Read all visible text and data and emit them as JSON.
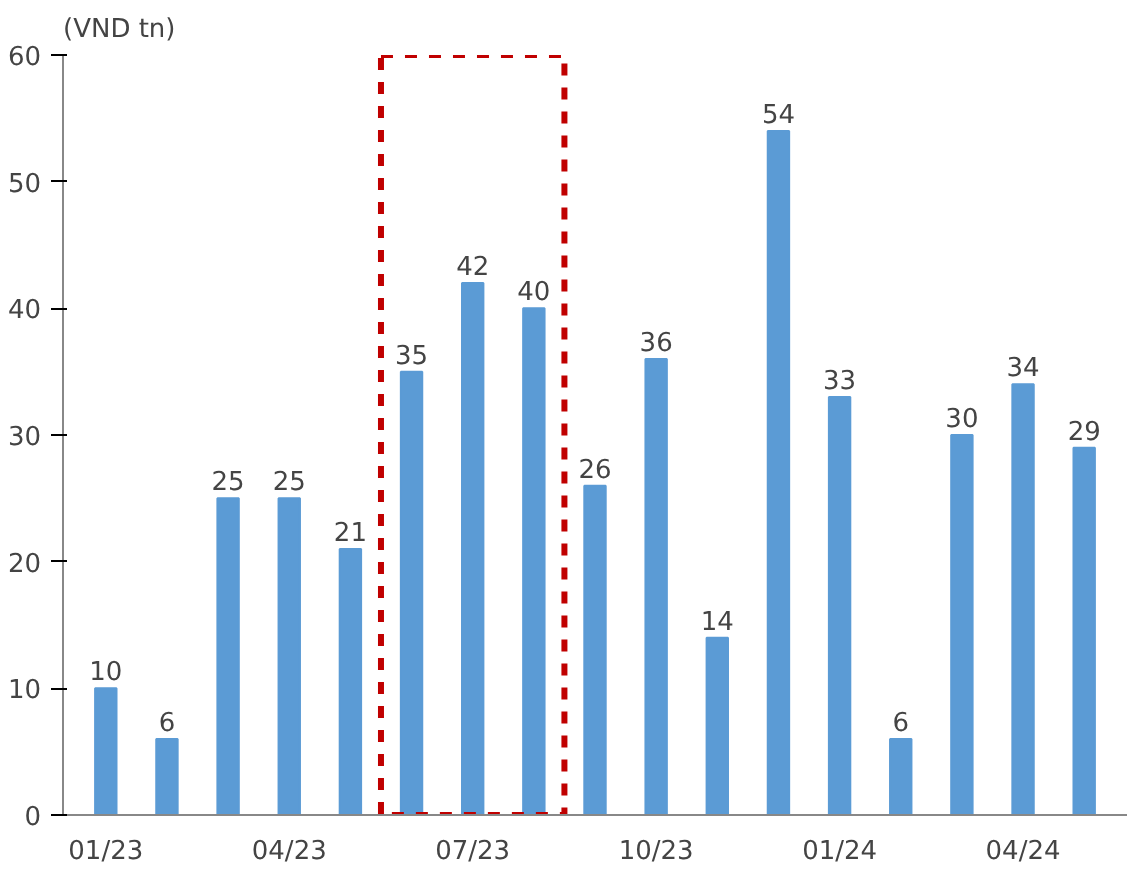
{
  "chart_data": {
    "type": "bar",
    "ylabel": "(VND tn)",
    "categories": [
      "01/23",
      null,
      null,
      "04/23",
      null,
      null,
      "07/23",
      null,
      null,
      "10/23",
      null,
      null,
      "01/24",
      null,
      null,
      "04/24",
      null
    ],
    "values": [
      10,
      6,
      25,
      25,
      21,
      35,
      42,
      40,
      26,
      36,
      14,
      54,
      33,
      6,
      30,
      34,
      29
    ],
    "color": "#5b9bd5",
    "ylim": [
      0,
      60
    ],
    "yticks": [
      0,
      10,
      20,
      30,
      40,
      50,
      60
    ],
    "grid": false,
    "data_labels": true
  }
}
